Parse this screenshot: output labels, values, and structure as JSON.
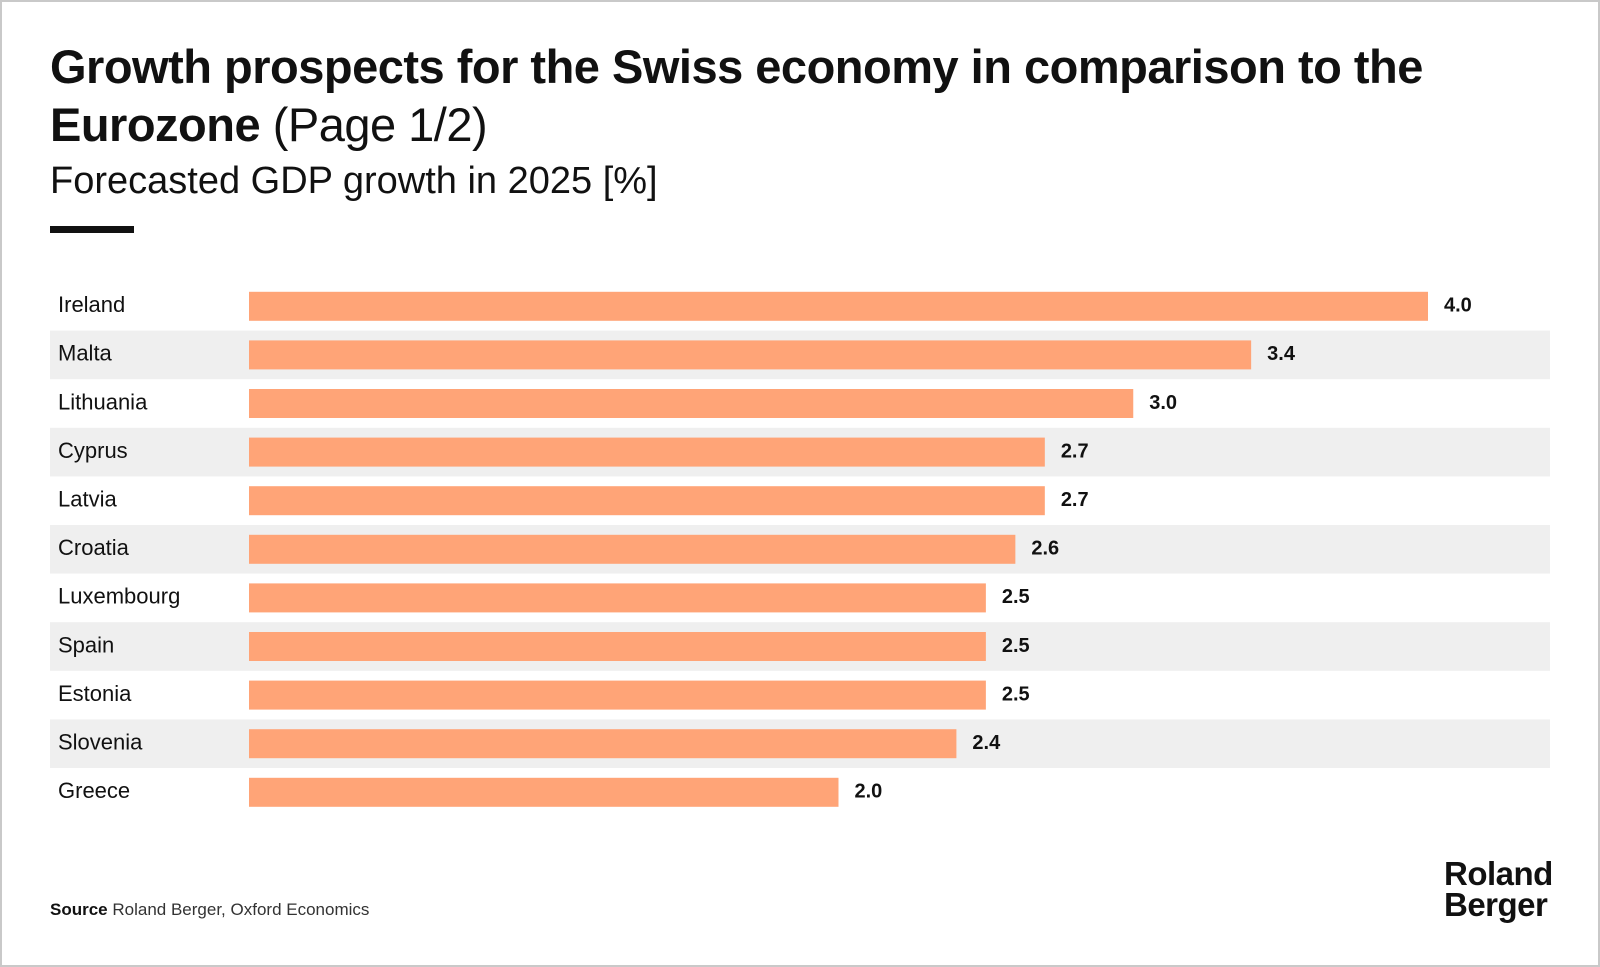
{
  "header": {
    "title_bold": "Growth prospects for the Swiss economy in comparison to the Eurozone",
    "title_suffix": "(Page 1/2)",
    "subtitle": "Forecasted GDP growth in 2025 [%]"
  },
  "colors": {
    "bar": "#FFA477",
    "stripe": "#EFEFEF",
    "text": "#111111"
  },
  "chart_data": {
    "type": "bar",
    "orientation": "horizontal",
    "title": "Growth prospects for the Swiss economy in comparison to the Eurozone (Page 1/2)",
    "subtitle": "Forecasted GDP growth in 2025 [%]",
    "xlabel": "",
    "ylabel": "",
    "xlim": [
      0,
      4.0
    ],
    "grid": false,
    "legend": "none",
    "categories": [
      "Ireland",
      "Malta",
      "Lithuania",
      "Cyprus",
      "Latvia",
      "Croatia",
      "Luxembourg",
      "Spain",
      "Estonia",
      "Slovenia",
      "Greece"
    ],
    "values": [
      4.0,
      3.4,
      3.0,
      2.7,
      2.7,
      2.6,
      2.5,
      2.5,
      2.5,
      2.4,
      2.0
    ],
    "value_labels": [
      "4.0",
      "3.4",
      "3.0",
      "2.7",
      "2.7",
      "2.6",
      "2.5",
      "2.5",
      "2.5",
      "2.4",
      "2.0"
    ]
  },
  "footer": {
    "source_label": "Source",
    "source_text": "Roland Berger, Oxford Economics",
    "logo_line1": "Roland",
    "logo_line2": "Berger"
  }
}
